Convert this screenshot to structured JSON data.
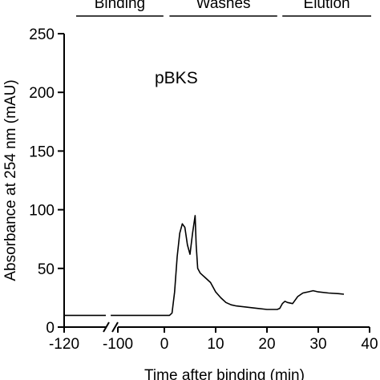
{
  "chart_data": {
    "type": "line",
    "title": "",
    "xlabel": "Time after binding (min)",
    "ylabel": "Absorbance at 254 nm (mAU)",
    "xlim": [
      -120,
      40
    ],
    "ylim": [
      0,
      250
    ],
    "x_ticks": [
      {
        "value": -120,
        "label": "-120"
      },
      {
        "value": -100,
        "label": "-100"
      },
      {
        "value": 0,
        "label": "0"
      },
      {
        "value": 10,
        "label": "10"
      },
      {
        "value": 20,
        "label": "20"
      },
      {
        "value": 30,
        "label": "30"
      },
      {
        "value": 40,
        "label": "40"
      }
    ],
    "y_ticks": [
      0,
      50,
      100,
      150,
      200,
      250
    ],
    "axis_break": "between -120 and -100 segment and -100",
    "annotation": "pBKS",
    "phases": [
      {
        "label": "Binding",
        "x_range": [
          -120,
          -2
        ]
      },
      {
        "label": "Washes",
        "x_range": [
          1,
          22
        ]
      },
      {
        "label": "Elution",
        "x_range": [
          23,
          40
        ]
      }
    ],
    "series": [
      {
        "values": [
          [
            -120,
            10
          ],
          [
            -103,
            10
          ],
          [
            -101,
            10
          ],
          [
            0,
            10
          ],
          [
            1,
            10
          ],
          [
            1.5,
            12
          ],
          [
            2,
            30
          ],
          [
            2.5,
            60
          ],
          [
            3,
            80
          ],
          [
            3.5,
            88
          ],
          [
            4,
            85
          ],
          [
            4.5,
            70
          ],
          [
            5,
            62
          ],
          [
            5.5,
            80
          ],
          [
            6,
            95
          ],
          [
            6.2,
            70
          ],
          [
            6.5,
            50
          ],
          [
            7,
            46
          ],
          [
            8,
            42
          ],
          [
            9,
            38
          ],
          [
            10,
            30
          ],
          [
            11,
            25
          ],
          [
            12,
            21
          ],
          [
            13,
            19
          ],
          [
            14,
            18
          ],
          [
            16,
            17
          ],
          [
            18,
            16
          ],
          [
            20,
            15
          ],
          [
            22,
            15
          ],
          [
            22.5,
            16
          ],
          [
            23,
            20
          ],
          [
            23.5,
            22
          ],
          [
            24,
            21
          ],
          [
            25,
            20
          ],
          [
            25.5,
            23
          ],
          [
            26,
            26
          ],
          [
            27,
            29
          ],
          [
            28,
            30
          ],
          [
            29,
            31
          ],
          [
            30,
            30
          ],
          [
            32,
            29
          ],
          [
            34,
            28.5
          ],
          [
            35,
            28
          ]
        ]
      }
    ]
  }
}
